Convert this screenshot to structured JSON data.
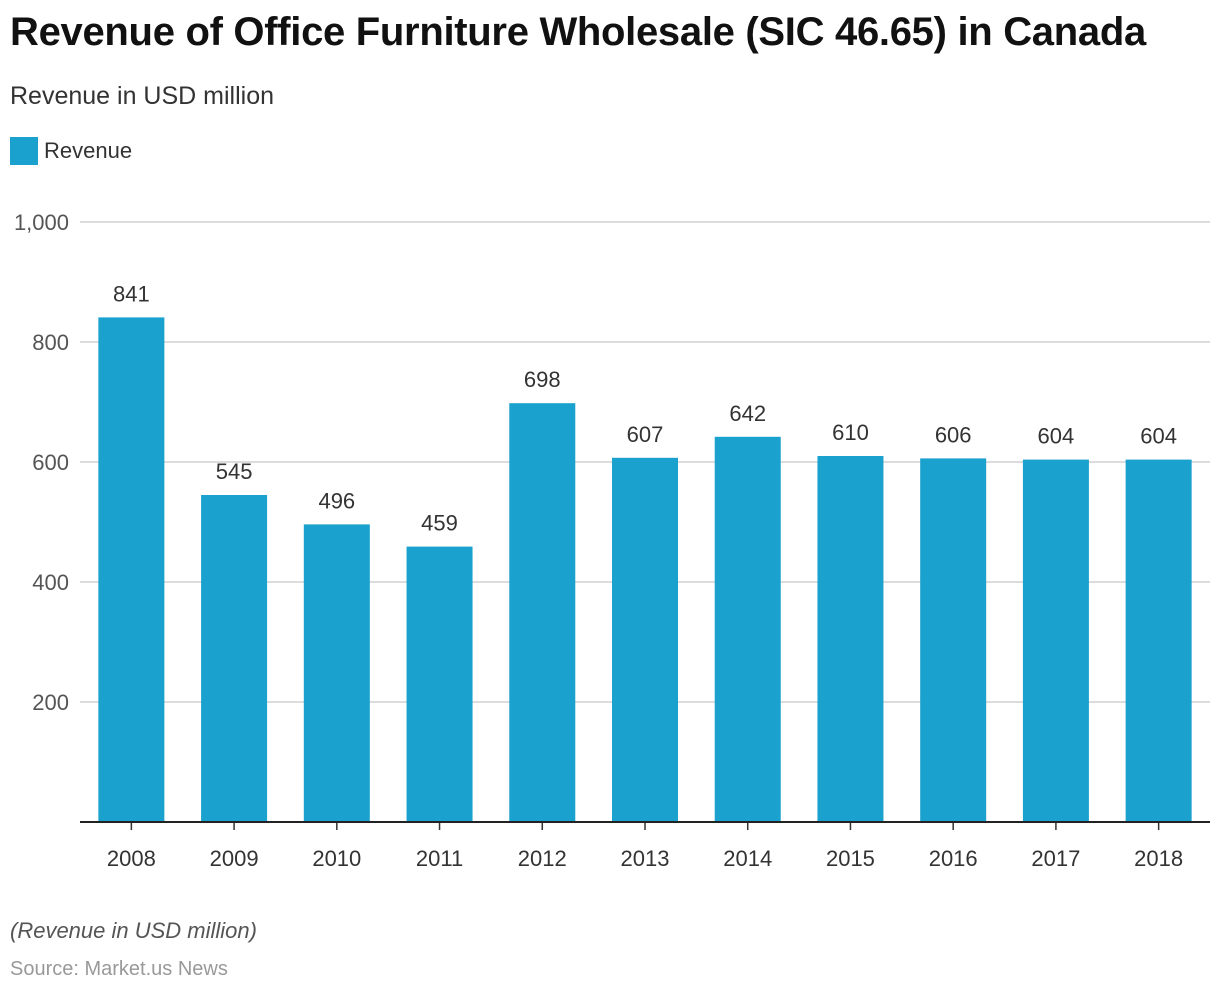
{
  "title": "Revenue of Office Furniture Wholesale (SIC 46.65) in Canada",
  "subtitle": "Revenue in USD million",
  "legend": {
    "label": "Revenue",
    "color": "#1aa1cd"
  },
  "note": "(Revenue in USD million)",
  "source": "Source: Market.us News",
  "chart_data": {
    "type": "bar",
    "title": "Revenue of Office Furniture Wholesale (SIC 46.65) in Canada",
    "xlabel": "",
    "ylabel": "Revenue in USD million",
    "categories": [
      "2008",
      "2009",
      "2010",
      "2011",
      "2012",
      "2013",
      "2014",
      "2015",
      "2016",
      "2017",
      "2018"
    ],
    "series": [
      {
        "name": "Revenue",
        "values": [
          841,
          545,
          496,
          459,
          698,
          607,
          642,
          610,
          606,
          604,
          604
        ],
        "color": "#1aa1cd"
      }
    ],
    "ylim": [
      0,
      1000
    ],
    "yticks": [
      200,
      400,
      600,
      800,
      1000
    ],
    "ytick_labels": [
      "200",
      "400",
      "600",
      "800",
      "1,000"
    ],
    "grid": true,
    "legend_position": "top-left"
  }
}
